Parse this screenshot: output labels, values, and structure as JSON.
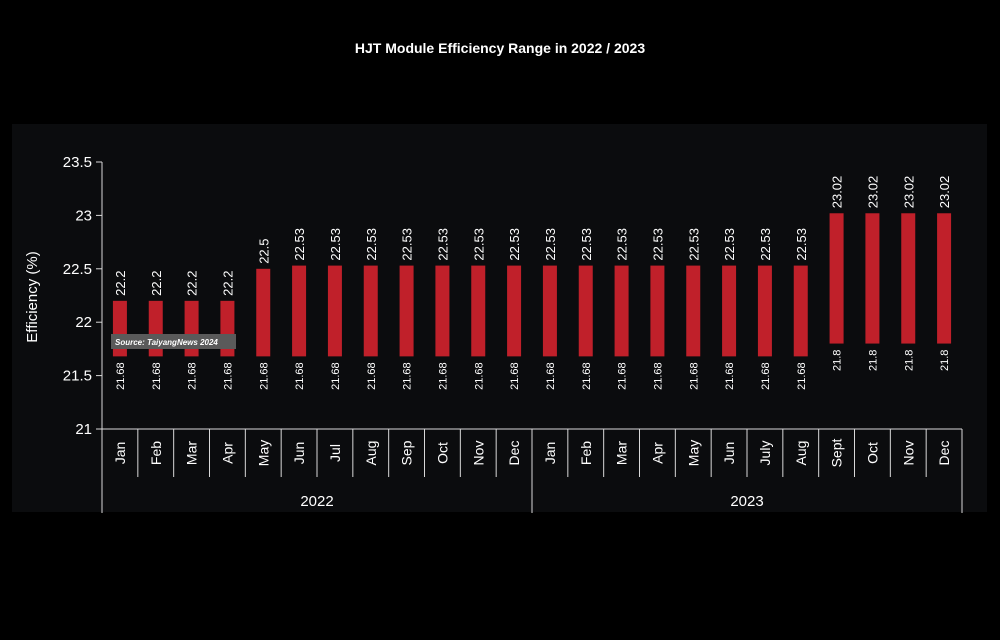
{
  "chart_data": {
    "type": "bar",
    "subtype": "floating-range",
    "title": "HJT Module Efficiency Range in 2022 / 2023",
    "ylabel": "Efficiency (%)",
    "ylim": [
      21,
      23.5
    ],
    "yticks": [
      "21",
      "21.5",
      "22",
      "22.5",
      "23",
      "23.5"
    ],
    "categories": [
      "Jan",
      "Feb",
      "Mar",
      "Apr",
      "May",
      "Jun",
      "Jul",
      "Aug",
      "Sep",
      "Oct",
      "Nov",
      "Dec",
      "Jan",
      "Feb",
      "Mar",
      "Apr",
      "May",
      "Jun",
      "July",
      "Aug",
      "Sept",
      "Oct",
      "Nov",
      "Dec"
    ],
    "groups": [
      {
        "label": "2022",
        "count": 12
      },
      {
        "label": "2023",
        "count": 12
      }
    ],
    "low": [
      21.68,
      21.68,
      21.68,
      21.68,
      21.68,
      21.68,
      21.68,
      21.68,
      21.68,
      21.68,
      21.68,
      21.68,
      21.68,
      21.68,
      21.68,
      21.68,
      21.68,
      21.68,
      21.68,
      21.68,
      21.8,
      21.8,
      21.8,
      21.8
    ],
    "high": [
      22.2,
      22.2,
      22.2,
      22.2,
      22.5,
      22.53,
      22.53,
      22.53,
      22.53,
      22.53,
      22.53,
      22.53,
      22.53,
      22.53,
      22.53,
      22.53,
      22.53,
      22.53,
      22.53,
      22.53,
      23.02,
      23.02,
      23.02,
      23.02
    ],
    "low_labels": [
      "21.68",
      "21.68",
      "21.68",
      "21.68",
      "21.68",
      "21.68",
      "21.68",
      "21.68",
      "21.68",
      "21.68",
      "21.68",
      "21.68",
      "21.68",
      "21.68",
      "21.68",
      "21.68",
      "21.68",
      "21.68",
      "21.68",
      "21.68",
      "21.8",
      "21.8",
      "21.8",
      "21.8"
    ],
    "high_labels": [
      "22.2",
      "22.2",
      "22.2",
      "22.2",
      "22.5",
      "22.53",
      "22.53",
      "22.53",
      "22.53",
      "22.53",
      "22.53",
      "22.53",
      "22.53",
      "22.53",
      "22.53",
      "22.53",
      "22.53",
      "22.53",
      "22.53",
      "22.53",
      "23.02",
      "23.02",
      "23.02",
      "23.02"
    ],
    "bar_color": "#c0202a",
    "background": "#0b0c0e",
    "grid": false,
    "legend": "none",
    "source_note": "Source: TaiyangNews 2024"
  }
}
